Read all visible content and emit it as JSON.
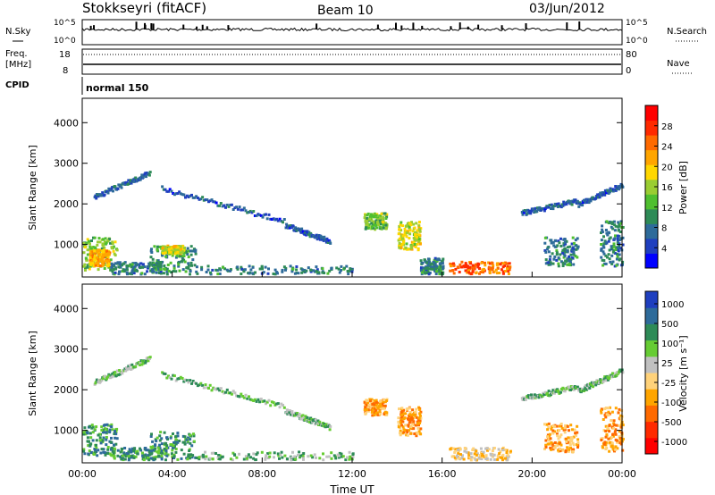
{
  "header": {
    "station": "Stokkseyri (fitACF)",
    "beam": "Beam 10",
    "date": "03/Jun/2012"
  },
  "noise_panel": {
    "left_label": "N.Sky",
    "right_label": "N.Search",
    "left_ticks": [
      "10^5",
      "10^0"
    ],
    "right_ticks": [
      "10^5",
      "10^0"
    ]
  },
  "freq_panel": {
    "left_label_1": "Freq.",
    "left_label_2": "[MHz]",
    "right_label": "Nave",
    "left_ticks": [
      "18",
      "8"
    ],
    "right_ticks": [
      "80",
      "0"
    ]
  },
  "cpid": {
    "label": "CPID",
    "mode": "normal 150"
  },
  "colors": {
    "power": [
      "#0000ff",
      "#1f3fbf",
      "#2e6b9a",
      "#2e8b57",
      "#4fbf2f",
      "#9acd32",
      "#ffd700",
      "#ffa500",
      "#ff6a00",
      "#ff2a00",
      "#ff0000"
    ],
    "velocity": [
      "#1f3fbf",
      "#2e6b9a",
      "#2e8b57",
      "#66cc33",
      "#c0c0c0",
      "#ffd27a",
      "#ffa500",
      "#ff6a00",
      "#ff2a00",
      "#ff0000"
    ]
  },
  "chart_data": [
    {
      "type": "heatmap",
      "name": "power",
      "ylabel": "Slant Range [km]",
      "xlim": [
        0,
        24
      ],
      "ylim": [
        200,
        4600
      ],
      "y_ticks": [
        "1000",
        "2000",
        "3000",
        "4000"
      ],
      "colorbar": {
        "label": "Power [dB]",
        "ticks": [
          "4",
          "8",
          "12",
          "16",
          "20",
          "24",
          "28"
        ],
        "range": [
          0,
          32
        ]
      },
      "echo_regions": [
        {
          "t": [
            0.0,
            1.5
          ],
          "r": [
            400,
            1200
          ],
          "v": 14
        },
        {
          "t": [
            0.3,
            1.2
          ],
          "r": [
            500,
            900
          ],
          "v": 22
        },
        {
          "t": [
            1.2,
            3.5
          ],
          "r": [
            300,
            600
          ],
          "v": 8
        },
        {
          "t": [
            3.0,
            5.0
          ],
          "r": [
            300,
            1000
          ],
          "v": 10
        },
        {
          "t": [
            3.5,
            4.5
          ],
          "r": [
            800,
            1000
          ],
          "v": 18
        },
        {
          "t": [
            5.0,
            12.0
          ],
          "r": [
            300,
            500
          ],
          "v": 8
        },
        {
          "t": [
            12.5,
            13.5
          ],
          "r": [
            1400,
            1800
          ],
          "v": 14
        },
        {
          "t": [
            14.0,
            15.0
          ],
          "r": [
            900,
            1600
          ],
          "v": 18
        },
        {
          "t": [
            16.3,
            19.0
          ],
          "r": [
            300,
            600
          ],
          "v": 26
        },
        {
          "t": [
            15.0,
            16.0
          ],
          "r": [
            300,
            700
          ],
          "v": 8
        },
        {
          "t": [
            20.5,
            22.0
          ],
          "r": [
            500,
            1200
          ],
          "v": 8
        },
        {
          "t": [
            23.0,
            24.0
          ],
          "r": [
            500,
            1600
          ],
          "v": 8
        }
      ],
      "echo_lines": [
        {
          "t": [
            0.5,
            3.0
          ],
          "r": [
            2200,
            2800
          ],
          "v": 6
        },
        {
          "t": [
            3.5,
            9.0
          ],
          "r": [
            2400,
            1600
          ],
          "v": 5
        },
        {
          "t": [
            9.0,
            11.0
          ],
          "r": [
            1500,
            1100
          ],
          "v": 5
        },
        {
          "t": [
            19.5,
            22.0
          ],
          "r": [
            1800,
            2100
          ],
          "v": 5
        },
        {
          "t": [
            22.0,
            24.0
          ],
          "r": [
            2000,
            2500
          ],
          "v": 5
        }
      ]
    },
    {
      "type": "heatmap",
      "name": "velocity",
      "xlabel": "Time UT",
      "ylabel": "Slant Range [km]",
      "xlim": [
        0,
        24
      ],
      "ylim": [
        200,
        4600
      ],
      "x_ticks": [
        "00:00",
        "04:00",
        "08:00",
        "12:00",
        "16:00",
        "20:00",
        "00:00"
      ],
      "y_ticks": [
        "1000",
        "2000",
        "3000",
        "4000"
      ],
      "colorbar": {
        "label": "Velocity [m s⁻¹]",
        "ticks": [
          "1000",
          "500",
          "100",
          "25",
          "-25",
          "-100",
          "-500",
          "-1000"
        ]
      },
      "echo_regions": [
        {
          "t": [
            0.0,
            1.5
          ],
          "r": [
            400,
            1200
          ],
          "v": "100"
        },
        {
          "t": [
            1.2,
            3.5
          ],
          "r": [
            300,
            600
          ],
          "v": "100"
        },
        {
          "t": [
            3.0,
            5.0
          ],
          "r": [
            300,
            1000
          ],
          "v": "100"
        },
        {
          "t": [
            5.0,
            12.0
          ],
          "r": [
            300,
            500
          ],
          "v": "25"
        },
        {
          "t": [
            12.5,
            13.5
          ],
          "r": [
            1400,
            1800
          ],
          "v": "-500"
        },
        {
          "t": [
            14.0,
            15.0
          ],
          "r": [
            900,
            1600
          ],
          "v": "-500"
        },
        {
          "t": [
            16.3,
            19.0
          ],
          "r": [
            300,
            600
          ],
          "v": "-100"
        },
        {
          "t": [
            20.5,
            22.0
          ],
          "r": [
            500,
            1200
          ],
          "v": "-500"
        },
        {
          "t": [
            23.0,
            24.0
          ],
          "r": [
            500,
            1600
          ],
          "v": "-500"
        }
      ],
      "echo_lines": [
        {
          "t": [
            0.5,
            3.0
          ],
          "r": [
            2200,
            2800
          ],
          "v": "25"
        },
        {
          "t": [
            3.5,
            9.0
          ],
          "r": [
            2400,
            1600
          ],
          "v": "25"
        },
        {
          "t": [
            9.0,
            11.0
          ],
          "r": [
            1500,
            1100
          ],
          "v": "25"
        },
        {
          "t": [
            19.5,
            22.0
          ],
          "r": [
            1800,
            2100
          ],
          "v": "25"
        },
        {
          "t": [
            22.0,
            24.0
          ],
          "r": [
            2000,
            2500
          ],
          "v": "25"
        }
      ]
    }
  ]
}
